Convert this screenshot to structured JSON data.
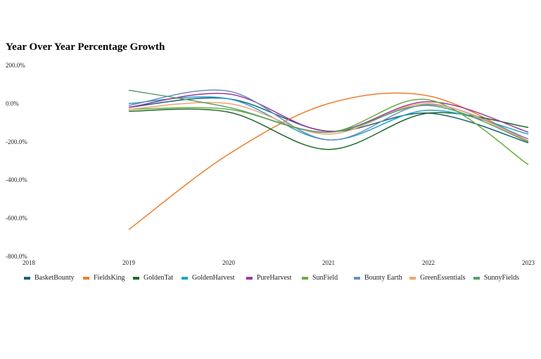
{
  "chart_data": {
    "type": "line",
    "title": "Year Over Year Percentage Growth",
    "xlabel": "",
    "ylabel": "",
    "x_ticks": [
      "2018",
      "2019",
      "2020",
      "2021",
      "2022",
      "2023"
    ],
    "y_ticks": [
      "200.0%",
      "0.0%",
      "-200.0%",
      "-400.0%",
      "-600.0%",
      "-800.0%"
    ],
    "xlim": [
      2018,
      2023
    ],
    "ylim": [
      -800,
      200
    ],
    "x": [
      2019,
      2020,
      2021,
      2022,
      2023
    ],
    "grid": false,
    "legend_position": "bottom",
    "series": [
      {
        "name": "BasketBounty",
        "color": "#1b5e7a",
        "values": [
          -20,
          25,
          -145,
          -50,
          -205
        ]
      },
      {
        "name": "FieldsKing",
        "color": "#ed7d31",
        "values": [
          -660,
          -265,
          0,
          40,
          -195
        ]
      },
      {
        "name": "GoldenTat",
        "color": "#1e6b2a",
        "values": [
          -40,
          -45,
          -240,
          -50,
          -125
        ]
      },
      {
        "name": "GoldenHarvest",
        "color": "#26a2c8",
        "values": [
          0,
          25,
          -190,
          -35,
          -160
        ]
      },
      {
        "name": "PureHarvest",
        "color": "#9b3a9b",
        "values": [
          -20,
          50,
          -145,
          10,
          -150
        ]
      },
      {
        "name": "SunField",
        "color": "#6aad45",
        "values": [
          -30,
          -30,
          -150,
          20,
          -320
        ]
      },
      {
        "name": "Bounty Earth",
        "color": "#6b8fbf",
        "values": [
          -10,
          65,
          -190,
          -5,
          -185
        ]
      },
      {
        "name": "GreenEssentials",
        "color": "#f0a274",
        "values": [
          -30,
          0,
          -160,
          0,
          -195
        ]
      },
      {
        "name": "SunnyFields",
        "color": "#5b9e6f",
        "values": [
          70,
          -20,
          -150,
          -10,
          -200
        ]
      }
    ]
  }
}
